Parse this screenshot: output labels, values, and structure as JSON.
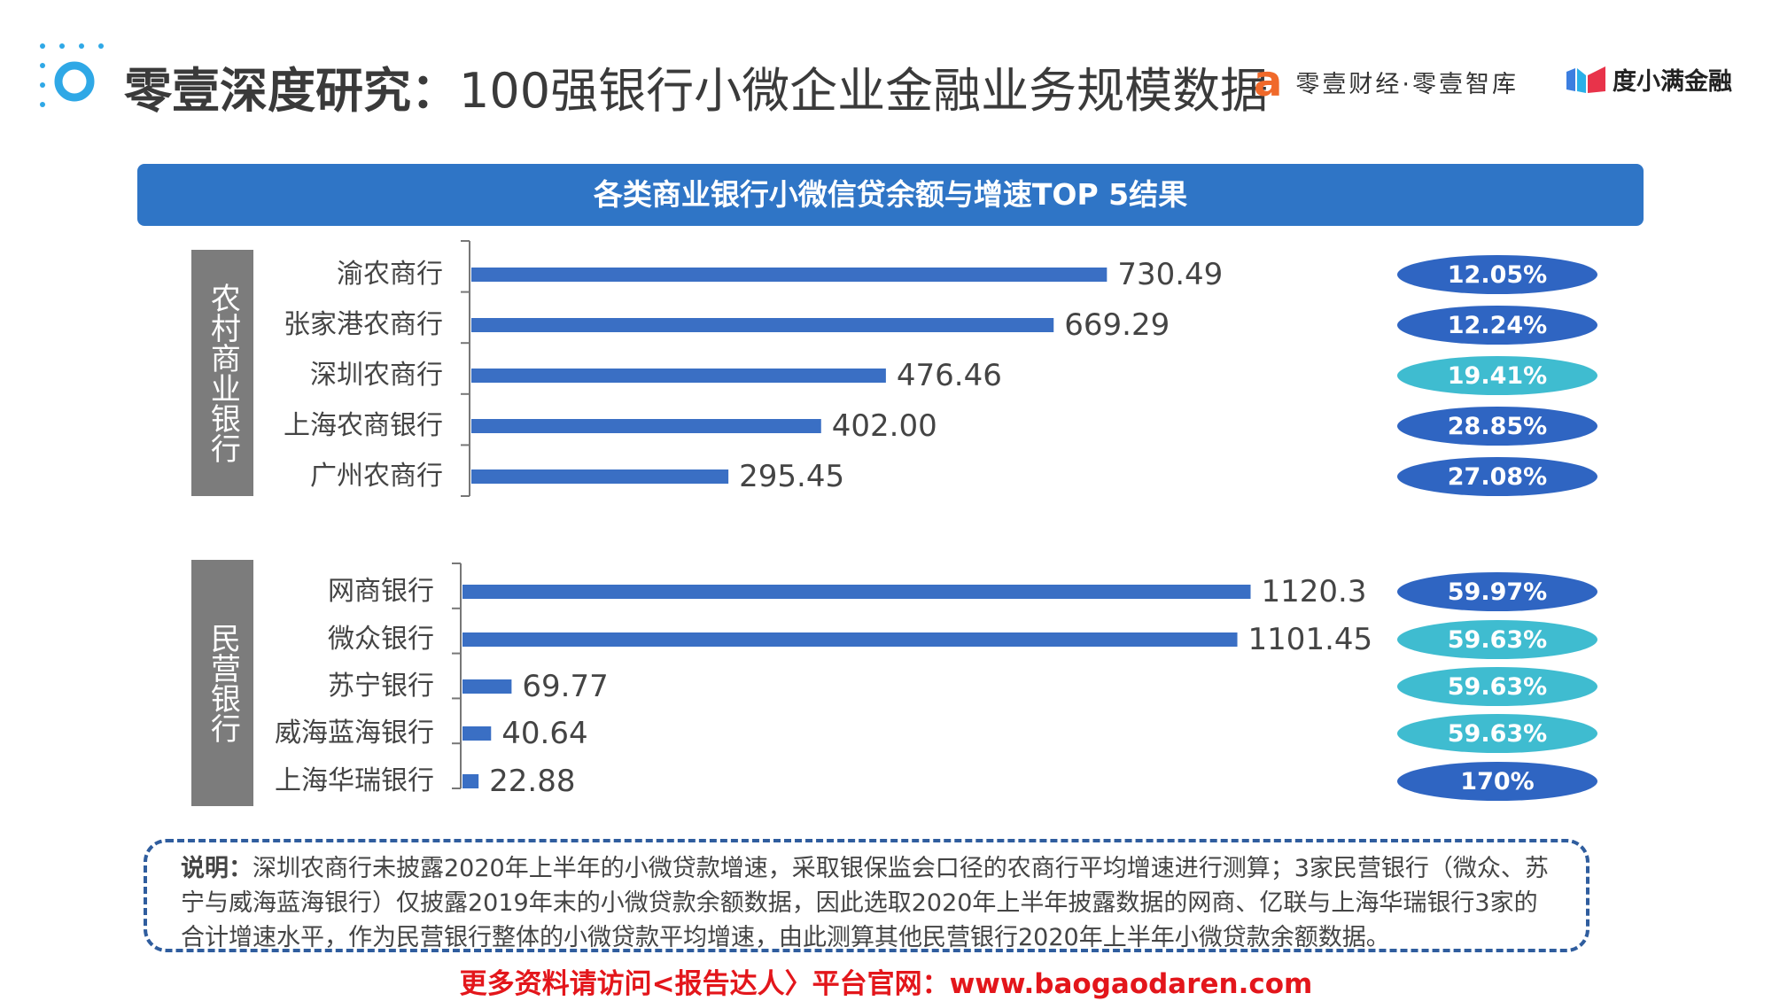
{
  "header": {
    "title_bold": "零壹深度研究：",
    "title_rest": "100强银行小微企业金融业务规模数据",
    "brand_left": "零壹财经·零壹智库",
    "brand_right": "度小满金融"
  },
  "banner": {
    "text": "各类商业银行小微信贷余额与增速TOP 5结果"
  },
  "chart_data": [
    {
      "type": "bar",
      "orientation": "horizontal",
      "group_label": "农村商业银行",
      "categories": [
        "渝农商行",
        "张家港农商行",
        "深圳农商行",
        "上海农商银行",
        "广州农商行"
      ],
      "values": [
        730.49,
        669.29,
        476.46,
        402.0,
        295.45
      ],
      "value_labels": [
        "730.49",
        "669.29",
        "476.46",
        "402.00",
        "295.45"
      ],
      "growth": [
        "12.05%",
        "12.24%",
        "19.41%",
        "28.85%",
        "27.08%"
      ],
      "growth_colors": [
        "#2f65c2",
        "#2f65c2",
        "#3fbcd0",
        "#2f65c2",
        "#2f65c2"
      ],
      "bar_color": "#3a6fc4"
    },
    {
      "type": "bar",
      "orientation": "horizontal",
      "group_label": "民营银行",
      "categories": [
        "网商银行",
        "微众银行",
        "苏宁银行",
        "威海蓝海银行",
        "上海华瑞银行"
      ],
      "values": [
        1120.3,
        1101.45,
        69.77,
        40.64,
        22.88
      ],
      "value_labels": [
        "1120.3",
        "1101.45",
        "69.77",
        "40.64",
        "22.88"
      ],
      "growth": [
        "59.97%",
        "59.63%",
        "59.63%",
        "59.63%",
        "170%"
      ],
      "growth_colors": [
        "#2f65c2",
        "#3fbcd0",
        "#3fbcd0",
        "#3fbcd0",
        "#2f65c2"
      ],
      "bar_color": "#3a6fc4"
    }
  ],
  "note": {
    "label": "说明：",
    "text": "深圳农商行未披露2020年上半年的小微贷款增速，采取银保监会口径的农商行平均增速进行测算；3家民营银行（微众、苏宁与威海蓝海银行）仅披露2019年末的小微贷款余额数据，因此选取2020年上半年披露数据的网商、亿联与上海华瑞银行3家的合计增速水平，作为民营银行整体的小微贷款平均增速，由此测算其他民营银行2020年上半年小微贷款余额数据。"
  },
  "footer": {
    "text": "更多资料请访问<报告达人〉平台官网：www.baogaodaren.com"
  }
}
